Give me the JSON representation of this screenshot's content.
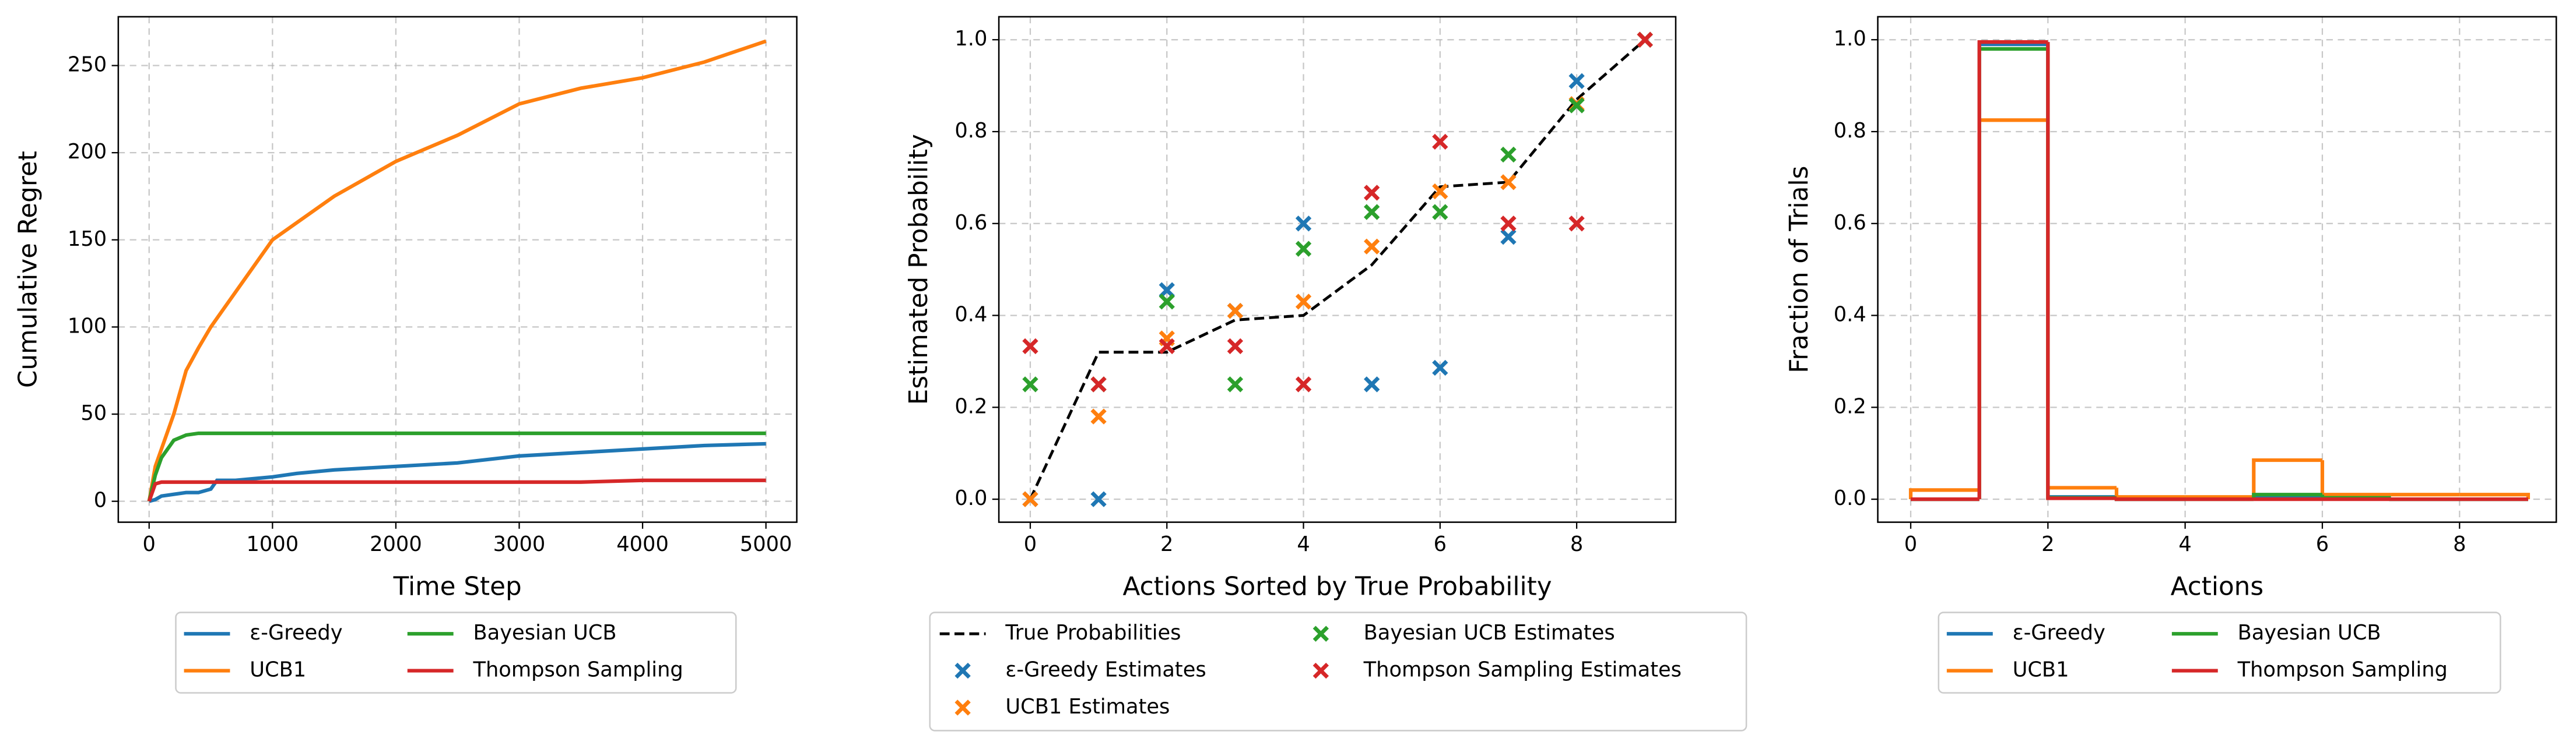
{
  "chart_data": [
    {
      "type": "line",
      "xlabel": "Time Step",
      "ylabel": "Cumulative Regret",
      "x": [
        0,
        50,
        100,
        200,
        300,
        400,
        500,
        550,
        700,
        1000,
        1200,
        1500,
        2000,
        2500,
        3000,
        3500,
        4000,
        4500,
        5000
      ],
      "series": [
        {
          "name": "ε-Greedy",
          "color": "#1f77b4",
          "values": [
            0,
            1,
            3,
            4,
            5,
            5,
            7,
            12,
            12,
            14,
            16,
            18,
            20,
            22,
            26,
            28,
            30,
            32,
            33
          ]
        },
        {
          "name": "UCB1",
          "color": "#ff7f0e",
          "values": [
            0,
            20,
            30,
            50,
            75,
            88,
            100,
            105,
            120,
            150,
            160,
            175,
            195,
            210,
            228,
            237,
            243,
            252,
            264
          ]
        },
        {
          "name": "Bayesian UCB",
          "color": "#2ca02c",
          "values": [
            0,
            15,
            25,
            35,
            38,
            39,
            39,
            39,
            39,
            39,
            39,
            39,
            39,
            39,
            39,
            39,
            39,
            39,
            39
          ]
        },
        {
          "name": "Thompson Sampling",
          "color": "#d62728",
          "values": [
            0,
            10,
            11,
            11,
            11,
            11,
            11,
            11,
            11,
            11,
            11,
            11,
            11,
            11,
            11,
            11,
            12,
            12,
            12
          ]
        }
      ],
      "xlim": [
        -250,
        5250
      ],
      "xticks": [
        0,
        1000,
        2000,
        3000,
        4000,
        5000
      ],
      "ylim": [
        -12,
        278
      ],
      "yticks": [
        0,
        50,
        100,
        150,
        200,
        250
      ],
      "grid": true,
      "legend": "below"
    },
    {
      "type": "scatter",
      "xlabel": "Actions Sorted by True Probability",
      "ylabel": "Estimated Probability",
      "x": [
        0,
        1,
        2,
        3,
        4,
        5,
        6,
        7,
        8,
        9
      ],
      "series": [
        {
          "name": "True Probabilities",
          "color": "#000000",
          "kind": "dashed-line",
          "values": [
            0,
            0.32,
            0.32,
            0.39,
            0.4,
            0.51,
            0.68,
            0.69,
            0.87,
            1.0
          ]
        },
        {
          "name": "ε-Greedy Estimates",
          "color": "#1f77b4",
          "kind": "marker",
          "values": [
            0,
            0,
            0.455,
            0.41,
            0.6,
            0.25,
            0.286,
            0.571,
            0.91,
            1.0
          ]
        },
        {
          "name": "UCB1 Estimates",
          "color": "#ff7f0e",
          "kind": "marker",
          "values": [
            0,
            0.18,
            0.35,
            0.41,
            0.43,
            0.55,
            0.67,
            0.69,
            0.86,
            1.0
          ]
        },
        {
          "name": "Bayesian UCB Estimates",
          "color": "#2ca02c",
          "kind": "marker",
          "values": [
            0.25,
            0.25,
            0.43,
            0.25,
            0.545,
            0.625,
            0.625,
            0.75,
            0.857,
            1.0
          ]
        },
        {
          "name": "Thompson Sampling Estimates",
          "color": "#d62728",
          "kind": "marker",
          "values": [
            0.333,
            0.25,
            0.333,
            0.333,
            0.25,
            0.667,
            0.778,
            0.6,
            0.6,
            1.0
          ]
        }
      ],
      "xlim": [
        -0.46,
        9.45
      ],
      "xticks": [
        0,
        2,
        4,
        6,
        8
      ],
      "ylim": [
        -0.05,
        1.05
      ],
      "yticks": [
        {
          "value": 0,
          "label": "0.0"
        },
        0.2,
        0.4,
        0.6,
        0.8,
        {
          "value": 1,
          "label": "1.0"
        }
      ],
      "grid": true,
      "legend": "below"
    },
    {
      "type": "histogram",
      "xlabel": "Actions",
      "ylabel": "Fraction of Trials",
      "bins": [
        0,
        1,
        2,
        3,
        4,
        5,
        6,
        7,
        8,
        9
      ],
      "series": [
        {
          "name": "ε-Greedy",
          "color": "#1f77b4",
          "values": [
            0,
            0.99,
            0.005,
            0,
            0.002,
            0.005,
            0.002,
            0,
            0
          ]
        },
        {
          "name": "UCB1",
          "color": "#ff7f0e",
          "values": [
            0.02,
            0.825,
            0.025,
            0.005,
            0.005,
            0.085,
            0.01,
            0.01,
            0.01
          ]
        },
        {
          "name": "Bayesian UCB",
          "color": "#2ca02c",
          "values": [
            0,
            0.98,
            0.003,
            0,
            0,
            0.01,
            0.003,
            0,
            0
          ]
        },
        {
          "name": "Thompson Sampling",
          "color": "#d62728",
          "values": [
            0,
            0.995,
            0.002,
            0,
            0,
            0,
            0,
            0,
            0
          ]
        }
      ],
      "xlim": [
        -0.48,
        9.41
      ],
      "xticks": [
        0,
        2,
        4,
        6,
        8
      ],
      "ylim": [
        -0.05,
        1.05
      ],
      "yticks": [
        {
          "value": 0,
          "label": "0.0"
        },
        0.2,
        0.4,
        0.6,
        0.8,
        {
          "value": 1,
          "label": "1.0"
        }
      ],
      "grid": true,
      "legend": "below"
    }
  ]
}
